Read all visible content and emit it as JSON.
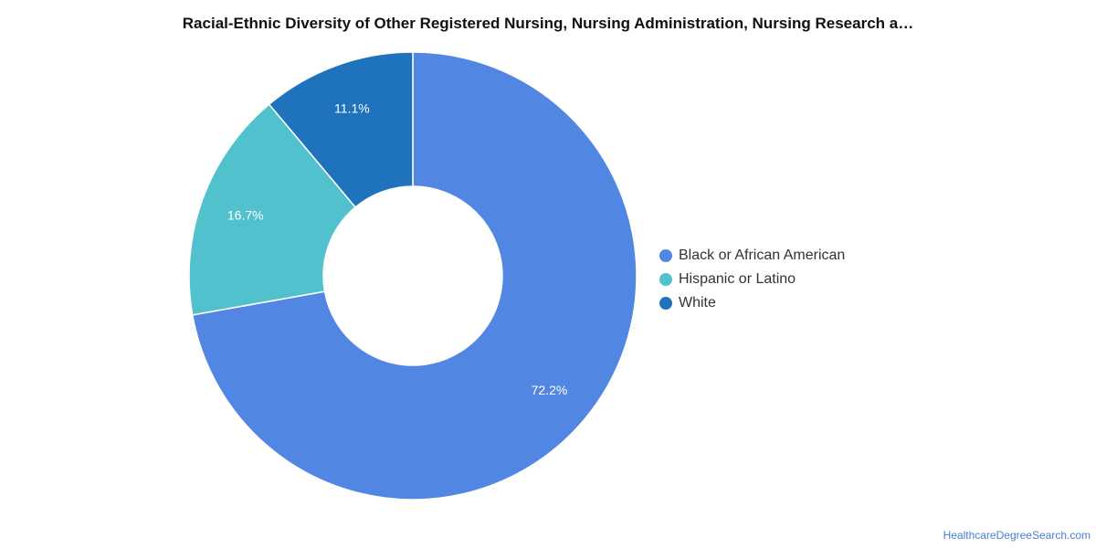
{
  "chart_data": {
    "type": "pie",
    "title": "Racial-Ethnic Diversity of Other Registered Nursing, Nursing Administration, Nursing Research a…",
    "categories": [
      "Black or African American",
      "Hispanic or Latino",
      "White"
    ],
    "values": [
      72.2,
      16.7,
      11.1
    ],
    "value_labels": [
      "72.2%",
      "16.7%",
      "11.1%"
    ],
    "colors": [
      "#5286e3",
      "#51c1cd",
      "#1f73bd"
    ],
    "donut": true,
    "legend_position": "right"
  },
  "source": "HealthcareDegreeSearch.com"
}
